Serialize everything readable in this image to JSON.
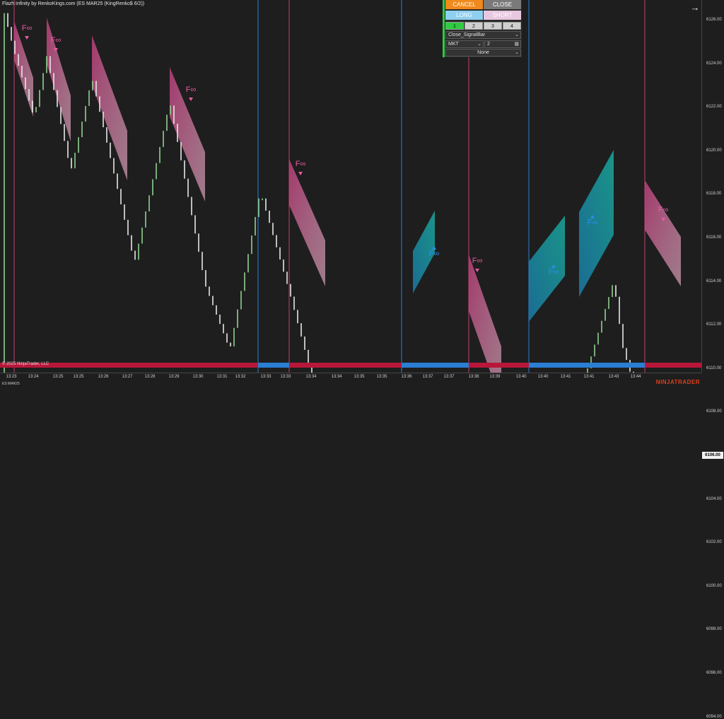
{
  "window": {
    "title": "Flazh Infinity by RenkoKings.com (ES MAR25 (KingRenko$ 6/2))"
  },
  "footer": {
    "copyright": "© 2025 NinjaTrader, LLC",
    "instrument": "ES MAR25",
    "brand": "NINJATRADER"
  },
  "price_axis": {
    "ticks": [
      "6126.00",
      "6124.00",
      "6122.00",
      "6120.00",
      "6118.00",
      "6116.00",
      "6114.00",
      "6112.00",
      "6110.00",
      "6108.00",
      "6106.00",
      "6104.00",
      "6102.00",
      "6100.00",
      "6098.00",
      "6096.00",
      "6094.00"
    ],
    "current": "6106.00"
  },
  "time_axis": {
    "ticks": [
      "13:23",
      "13:24",
      "13:25",
      "13:25",
      "13:26",
      "13:27",
      "13:28",
      "13:29",
      "13:30",
      "13:31",
      "13:32",
      "13:33",
      "13:33",
      "13:34",
      "13:34",
      "13:35",
      "13:35",
      "13:36",
      "13:37",
      "13:37",
      "13:38",
      "13:39",
      "13:40",
      "13:40",
      "13:41",
      "13:41",
      "13:43",
      "13:44"
    ]
  },
  "order_panel": {
    "cancel": "CANCEL",
    "close": "CLOSE",
    "long": "LONG",
    "short": "SHORT",
    "quantities": [
      "1",
      "2",
      "3",
      "4"
    ],
    "signal_select": "Close_SignalBar",
    "order_type": "MKT",
    "quantity_value": "2",
    "strategy_select": "None"
  },
  "signal_label": "F∞",
  "colors": {
    "up_bar": "#8fd18f",
    "down_bar": "#e08080",
    "bull_zone": "#1aa3b0",
    "bear_zone": "#d65a9a",
    "bull_signal": "#2a8ee8",
    "bear_signal": "#e85aa0",
    "bottom_bear": "#b8173a",
    "bottom_bull": "#2a7fd4"
  },
  "icons": {
    "expand": "arrow-right-icon"
  }
}
